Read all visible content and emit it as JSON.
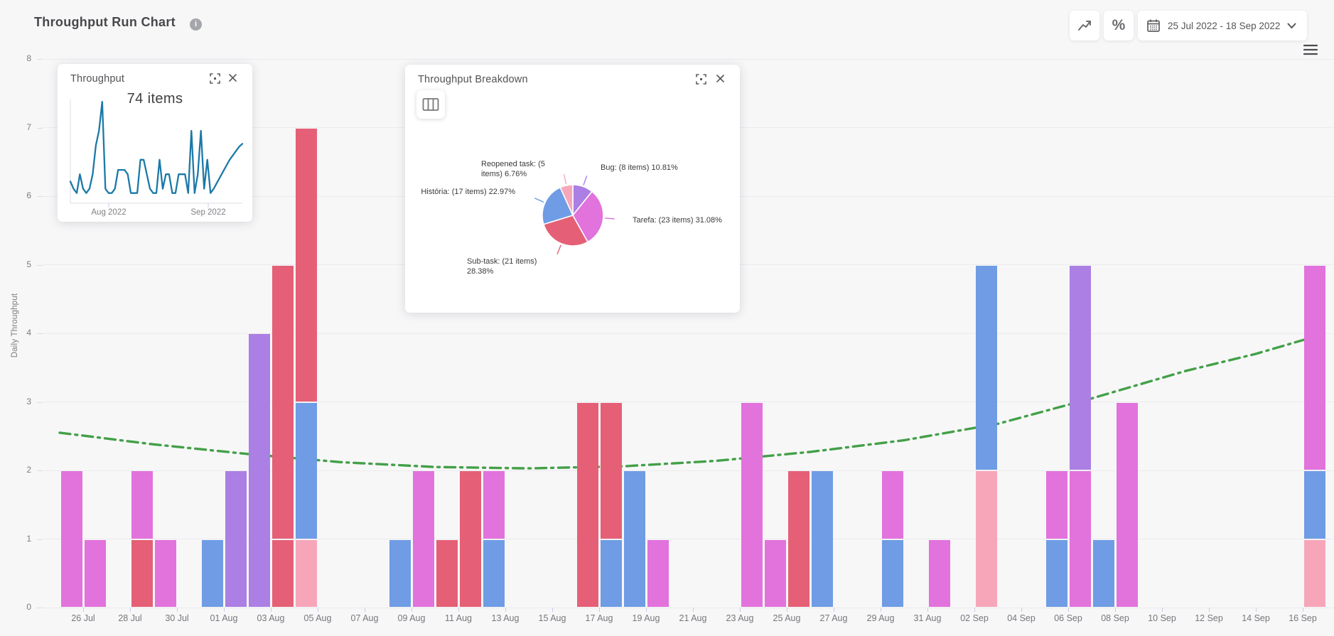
{
  "header": {
    "title": "Throughput Run Chart",
    "info_glyph": "i"
  },
  "toolbar": {
    "percent_label": "%",
    "date_range": "25 Jul 2022 - 18 Sep 2022"
  },
  "colors": {
    "accent_green": "#43a047",
    "spark_blue": "#1b79a8",
    "panel_bg": "#ffffff",
    "page_bg": "#f7f7f8"
  },
  "throughput_panel": {
    "title": "Throughput",
    "total_label": "74 items",
    "x_ticks": [
      "Aug 2022",
      "Sep 2022"
    ]
  },
  "breakdown_panel": {
    "title": "Throughput Breakdown"
  },
  "chart_data": [
    {
      "type": "bar",
      "title": "Daily Throughput run chart (stacked by item type)",
      "xlabel": "",
      "ylabel": "Daily Throughput",
      "ylim": [
        0,
        8
      ],
      "grid": true,
      "colors": {
        "tarefa": "#e272dc",
        "subtask": "#e56076",
        "historia": "#6f9ce4",
        "reopened": "#f7a6ba",
        "bug": "#ab7fe3"
      },
      "legend_names": {
        "tarefa": "Tarefa",
        "subtask": "Sub-task",
        "historia": "História",
        "reopened": "Reopened task",
        "bug": "Bug"
      },
      "x_tick_labels": [
        "26 Jul",
        "28 Jul",
        "30 Jul",
        "01 Aug",
        "03 Aug",
        "05 Aug",
        "07 Aug",
        "09 Aug",
        "11 Aug",
        "13 Aug",
        "15 Aug",
        "17 Aug",
        "19 Aug",
        "21 Aug",
        "23 Aug",
        "25 Aug",
        "27 Aug",
        "29 Aug",
        "31 Aug",
        "02 Sep",
        "04 Sep",
        "06 Sep",
        "08 Sep",
        "10 Sep",
        "12 Sep",
        "14 Sep",
        "16 Sep"
      ],
      "days": [
        {
          "date": "25 Jul",
          "segments": [
            [
              "tarefa",
              2
            ]
          ]
        },
        {
          "date": "26 Jul",
          "segments": [
            [
              "tarefa",
              1
            ]
          ]
        },
        {
          "date": "27 Jul",
          "segments": []
        },
        {
          "date": "28 Jul",
          "segments": [
            [
              "subtask",
              1
            ],
            [
              "tarefa",
              1
            ]
          ]
        },
        {
          "date": "29 Jul",
          "segments": [
            [
              "tarefa",
              1
            ]
          ]
        },
        {
          "date": "30 Jul",
          "segments": []
        },
        {
          "date": "31 Jul",
          "segments": [
            [
              "historia",
              1
            ]
          ]
        },
        {
          "date": "01 Aug",
          "segments": [
            [
              "bug",
              2
            ]
          ]
        },
        {
          "date": "02 Aug",
          "segments": [
            [
              "bug",
              4
            ]
          ]
        },
        {
          "date": "03 Aug",
          "segments": [
            [
              "subtask",
              1
            ],
            [
              "subtask",
              4
            ]
          ]
        },
        {
          "date": "04 Aug",
          "segments": [
            [
              "reopened",
              1
            ],
            [
              "historia",
              2
            ],
            [
              "subtask",
              4
            ]
          ]
        },
        {
          "date": "05 Aug",
          "segments": []
        },
        {
          "date": "06 Aug",
          "segments": []
        },
        {
          "date": "07 Aug",
          "segments": []
        },
        {
          "date": "08 Aug",
          "segments": [
            [
              "historia",
              1
            ]
          ]
        },
        {
          "date": "09 Aug",
          "segments": [
            [
              "tarefa",
              2
            ]
          ]
        },
        {
          "date": "10 Aug",
          "segments": [
            [
              "subtask",
              1
            ]
          ]
        },
        {
          "date": "11 Aug",
          "segments": [
            [
              "subtask",
              2
            ]
          ]
        },
        {
          "date": "12 Aug",
          "segments": [
            [
              "historia",
              1
            ],
            [
              "tarefa",
              1
            ]
          ]
        },
        {
          "date": "13 Aug",
          "segments": []
        },
        {
          "date": "14 Aug",
          "segments": []
        },
        {
          "date": "15 Aug",
          "segments": []
        },
        {
          "date": "16 Aug",
          "segments": [
            [
              "subtask",
              3
            ]
          ]
        },
        {
          "date": "17 Aug",
          "segments": [
            [
              "historia",
              1
            ],
            [
              "subtask",
              2
            ]
          ]
        },
        {
          "date": "18 Aug",
          "segments": [
            [
              "historia",
              2
            ]
          ]
        },
        {
          "date": "19 Aug",
          "segments": [
            [
              "tarefa",
              1
            ]
          ]
        },
        {
          "date": "20 Aug",
          "segments": []
        },
        {
          "date": "21 Aug",
          "segments": []
        },
        {
          "date": "22 Aug",
          "segments": []
        },
        {
          "date": "23 Aug",
          "segments": [
            [
              "tarefa",
              3
            ]
          ]
        },
        {
          "date": "24 Aug",
          "segments": [
            [
              "tarefa",
              1
            ]
          ]
        },
        {
          "date": "25 Aug",
          "segments": [
            [
              "subtask",
              2
            ]
          ]
        },
        {
          "date": "26 Aug",
          "segments": [
            [
              "historia",
              2
            ]
          ]
        },
        {
          "date": "27 Aug",
          "segments": []
        },
        {
          "date": "28 Aug",
          "segments": []
        },
        {
          "date": "29 Aug",
          "segments": [
            [
              "historia",
              1
            ],
            [
              "tarefa",
              1
            ]
          ]
        },
        {
          "date": "30 Aug",
          "segments": []
        },
        {
          "date": "31 Aug",
          "segments": [
            [
              "tarefa",
              1
            ]
          ]
        },
        {
          "date": "01 Sep",
          "segments": []
        },
        {
          "date": "02 Sep",
          "segments": [
            [
              "reopened",
              2
            ],
            [
              "historia",
              3
            ]
          ]
        },
        {
          "date": "03 Sep",
          "segments": []
        },
        {
          "date": "04 Sep",
          "segments": []
        },
        {
          "date": "05 Sep",
          "segments": [
            [
              "historia",
              1
            ],
            [
              "tarefa",
              1
            ]
          ]
        },
        {
          "date": "06 Sep",
          "segments": [
            [
              "tarefa",
              2
            ],
            [
              "bug",
              3
            ]
          ]
        },
        {
          "date": "07 Sep",
          "segments": [
            [
              "historia",
              1
            ]
          ]
        },
        {
          "date": "08 Sep",
          "segments": [
            [
              "tarefa",
              3
            ]
          ]
        },
        {
          "date": "09 Sep",
          "segments": []
        },
        {
          "date": "10 Sep",
          "segments": []
        },
        {
          "date": "11 Sep",
          "segments": []
        },
        {
          "date": "12 Sep",
          "segments": []
        },
        {
          "date": "13 Sep",
          "segments": []
        },
        {
          "date": "14 Sep",
          "segments": []
        },
        {
          "date": "15 Sep",
          "segments": []
        },
        {
          "date": "16 Sep",
          "segments": [
            [
              "reopened",
              1
            ],
            [
              "historia",
              1
            ],
            [
              "tarefa",
              3
            ]
          ]
        },
        {
          "date": "17 Sep",
          "segments": []
        }
      ],
      "trend_line": {
        "color": "#43a047",
        "style": "dash-dot",
        "points": [
          [
            0,
            2.55
          ],
          [
            4,
            2.38
          ],
          [
            8,
            2.24
          ],
          [
            12,
            2.12
          ],
          [
            16,
            2.05
          ],
          [
            20,
            2.03
          ],
          [
            24,
            2.06
          ],
          [
            28,
            2.14
          ],
          [
            32,
            2.27
          ],
          [
            36,
            2.44
          ],
          [
            40,
            2.68
          ],
          [
            44,
            3.05
          ],
          [
            48,
            3.45
          ],
          [
            51,
            3.7
          ],
          [
            53.5,
            3.95
          ]
        ]
      }
    },
    {
      "type": "pie",
      "title": "Throughput Breakdown",
      "slices": [
        {
          "name": "Bug",
          "items": 8,
          "pct": 10.81,
          "color": "#ab7fe3",
          "label": "Bug: (8 items) 10.81%"
        },
        {
          "name": "Tarefa",
          "items": 23,
          "pct": 31.08,
          "color": "#e272dc",
          "label": "Tarefa: (23 items) 31.08%"
        },
        {
          "name": "Sub-task",
          "items": 21,
          "pct": 28.38,
          "color": "#e56076",
          "label": "Sub-task: (21 items) 28.38%"
        },
        {
          "name": "História",
          "items": 17,
          "pct": 22.97,
          "color": "#6f9ce4",
          "label": "História: (17 items) 22.97%"
        },
        {
          "name": "Reopened task",
          "items": 5,
          "pct": 6.76,
          "color": "#f7a6ba",
          "label": "Reopened task: (5 items) 6.76%"
        }
      ]
    },
    {
      "type": "line",
      "title": "Throughput",
      "total": "74 items",
      "x_ticks": [
        "Aug 2022",
        "Sep 2022"
      ],
      "values": [
        1.5,
        1,
        0.7,
        2,
        1,
        0.7,
        1,
        2,
        4,
        5,
        7,
        1,
        0.7,
        0.7,
        1,
        2.3,
        2.3,
        2.3,
        2,
        0.7,
        0.7,
        0.7,
        3,
        3,
        2,
        1,
        0.7,
        0.7,
        3,
        1,
        2,
        2,
        0.7,
        0.7,
        2,
        2,
        2,
        0.7,
        5,
        0.7,
        2,
        5,
        1,
        3,
        0.7,
        1,
        1.4,
        1.8,
        2.2,
        2.6,
        3,
        3.3,
        3.6,
        3.9,
        4.1
      ]
    }
  ]
}
